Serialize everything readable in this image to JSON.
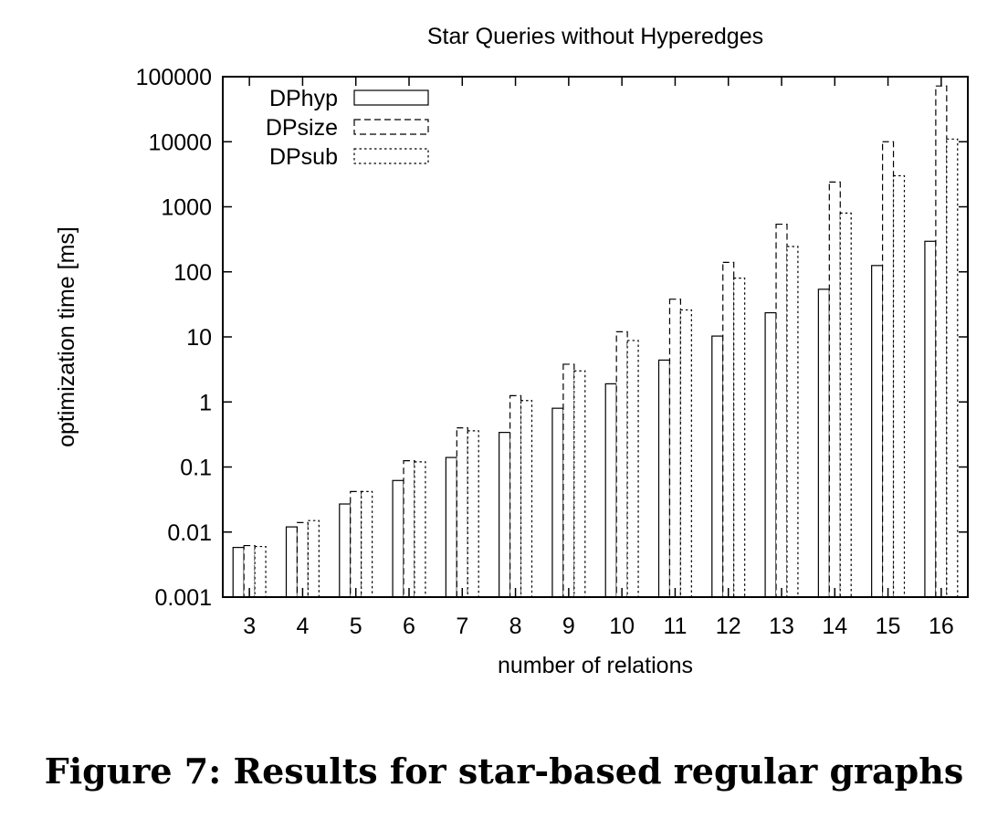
{
  "chart_data": {
    "type": "bar",
    "title": "Star Queries without Hyperedges",
    "xlabel": "number of relations",
    "ylabel": "optimization time [ms]",
    "yscale": "log",
    "ylim": [
      0.001,
      100000
    ],
    "yticks": [
      {
        "value": 0.001,
        "label": "0.001"
      },
      {
        "value": 0.01,
        "label": "0.01"
      },
      {
        "value": 0.1,
        "label": "0.1"
      },
      {
        "value": 1,
        "label": "1"
      },
      {
        "value": 10,
        "label": "10"
      },
      {
        "value": 100,
        "label": "100"
      },
      {
        "value": 1000,
        "label": "1000"
      },
      {
        "value": 10000,
        "label": "10000"
      },
      {
        "value": 100000,
        "label": "100000"
      }
    ],
    "categories": [
      "3",
      "4",
      "5",
      "6",
      "7",
      "8",
      "9",
      "10",
      "11",
      "12",
      "13",
      "14",
      "15",
      "16"
    ],
    "legend_position": "top-left",
    "grid": false,
    "series": [
      {
        "name": "DPhyp",
        "line_style": "solid",
        "values": [
          0.0058,
          0.012,
          0.027,
          0.062,
          0.14,
          0.34,
          0.8,
          1.9,
          4.4,
          10.3,
          23.5,
          54,
          125,
          295
        ]
      },
      {
        "name": "DPsize",
        "line_style": "dashed",
        "values": [
          0.0062,
          0.014,
          0.042,
          0.125,
          0.4,
          1.25,
          3.8,
          12,
          38,
          140,
          540,
          2400,
          10000,
          72000
        ]
      },
      {
        "name": "DPsub",
        "line_style": "dotted",
        "values": [
          0.006,
          0.015,
          0.042,
          0.12,
          0.36,
          1.05,
          3.0,
          8.8,
          26,
          80,
          245,
          800,
          3000,
          11000
        ]
      }
    ]
  },
  "caption": "Figure 7: Results for star-based regular graphs"
}
